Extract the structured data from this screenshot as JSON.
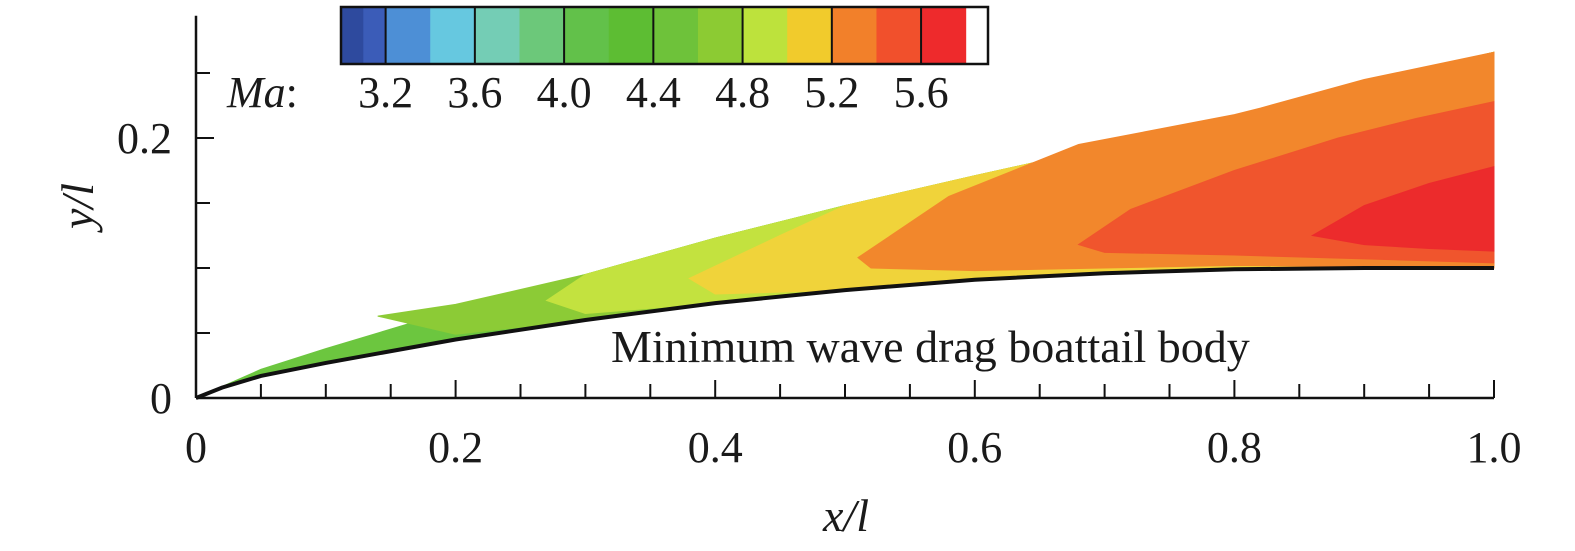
{
  "chart_data": {
    "type": "heatmap",
    "xlabel": "x/l",
    "ylabel": "y/l",
    "xlim": [
      0,
      1.0
    ],
    "ylim": [
      0,
      0.3
    ],
    "x_ticks": [
      "0",
      "0.2",
      "0.4",
      "0.6",
      "0.8",
      "1.0"
    ],
    "x_tick_values": [
      0,
      0.2,
      0.4,
      0.6,
      0.8,
      1.0
    ],
    "y_ticks": [
      "0",
      "0.2"
    ],
    "y_tick_values": [
      0,
      0.2
    ],
    "annotation": "Minimum wave drag boattail body",
    "colorbar": {
      "title_var": "Ma",
      "title_sep": ":",
      "labels": [
        "3.2",
        "3.6",
        "4.0",
        "4.4",
        "4.8",
        "5.2",
        "5.6"
      ],
      "label_values": [
        3.2,
        3.6,
        4.0,
        4.4,
        4.8,
        5.2,
        5.6
      ],
      "levels": [
        3.0,
        3.1,
        3.2,
        3.4,
        3.6,
        3.8,
        4.0,
        4.2,
        4.4,
        4.6,
        4.8,
        5.0,
        5.2,
        5.4,
        5.6,
        5.8,
        5.9
      ],
      "colors": [
        "#2e4a9e",
        "#3b5cb8",
        "#4d8fd6",
        "#66c8e0",
        "#74cdb5",
        "#6cc87a",
        "#62c14a",
        "#5dbd33",
        "#6ec23a",
        "#8ccb33",
        "#bde23c",
        "#f1cb2c",
        "#f2802a",
        "#f1502c",
        "#ee2a2c"
      ]
    },
    "body_curve": {
      "x": [
        0,
        0.02,
        0.05,
        0.1,
        0.2,
        0.3,
        0.4,
        0.5,
        0.6,
        0.7,
        0.8,
        0.9,
        1.0
      ],
      "y": [
        0,
        0.008,
        0.017,
        0.027,
        0.045,
        0.06,
        0.073,
        0.083,
        0.091,
        0.096,
        0.099,
        0.1,
        0.1
      ]
    },
    "shock_curve": {
      "x": [
        0,
        0.05,
        0.1,
        0.2,
        0.3,
        0.4,
        0.5,
        0.6,
        0.7,
        0.8,
        0.9,
        1.0
      ],
      "y": [
        0,
        0.022,
        0.038,
        0.068,
        0.095,
        0.123,
        0.148,
        0.171,
        0.193,
        0.217,
        0.242,
        0.266
      ]
    },
    "regions": [
      {
        "name": "Ma 4.4-4.8",
        "color": "#6cc63f",
        "x": [
          0,
          0.05,
          0.1,
          0.2,
          0.3,
          0.4,
          0.5,
          0.6,
          0.7,
          0.8,
          0.9,
          1.0,
          1.0,
          0.9,
          0.8,
          0.7,
          0.6,
          0.5,
          0.4,
          0.3,
          0.2,
          0.1,
          0.05,
          0.02,
          0
        ],
        "y": [
          0,
          0.022,
          0.038,
          0.068,
          0.095,
          0.123,
          0.148,
          0.171,
          0.193,
          0.217,
          0.242,
          0.266,
          0.1,
          0.1,
          0.099,
          0.096,
          0.091,
          0.083,
          0.073,
          0.06,
          0.045,
          0.027,
          0.017,
          0.008,
          0
        ]
      },
      {
        "name": "Ma 4.8-5.0",
        "color": "#8ccb36",
        "x": [
          0.14,
          0.2,
          0.3,
          0.4,
          0.5,
          0.6,
          0.7,
          0.8,
          0.9,
          1.0,
          1.0,
          0.9,
          0.8,
          0.7,
          0.6,
          0.5,
          0.4,
          0.3,
          0.2,
          0.14
        ],
        "y": [
          0.063,
          0.072,
          0.095,
          0.123,
          0.148,
          0.171,
          0.193,
          0.217,
          0.242,
          0.266,
          0.1,
          0.1,
          0.099,
          0.096,
          0.091,
          0.083,
          0.073,
          0.06,
          0.049,
          0.063
        ]
      },
      {
        "name": "Ma 5.0-5.2",
        "color": "#c3e23f",
        "x": [
          0.27,
          0.3,
          0.4,
          0.5,
          0.6,
          0.7,
          0.8,
          0.9,
          1.0,
          1.0,
          0.9,
          0.8,
          0.7,
          0.6,
          0.5,
          0.4,
          0.3,
          0.27
        ],
        "y": [
          0.075,
          0.095,
          0.123,
          0.148,
          0.171,
          0.193,
          0.217,
          0.242,
          0.266,
          0.1,
          0.1,
          0.099,
          0.096,
          0.091,
          0.083,
          0.073,
          0.065,
          0.075
        ]
      },
      {
        "name": "Ma 5.2-5.4",
        "color": "#f0d33a",
        "x": [
          0.38,
          0.45,
          0.5,
          0.6,
          0.7,
          0.8,
          0.9,
          1.0,
          1.0,
          0.9,
          0.8,
          0.7,
          0.6,
          0.5,
          0.4,
          0.38
        ],
        "y": [
          0.092,
          0.125,
          0.148,
          0.171,
          0.193,
          0.217,
          0.242,
          0.266,
          0.1,
          0.1,
          0.099,
          0.096,
          0.091,
          0.083,
          0.08,
          0.092
        ]
      },
      {
        "name": "Ma 5.4-5.6",
        "color": "#f2872c",
        "x": [
          0.51,
          0.58,
          0.68,
          0.8,
          0.82,
          0.9,
          1.0,
          1.0,
          0.9,
          0.8,
          0.7,
          0.6,
          0.52,
          0.51
        ],
        "y": [
          0.108,
          0.155,
          0.195,
          0.218,
          0.223,
          0.245,
          0.266,
          0.1,
          0.101,
          0.102,
          0.1,
          0.098,
          0.1,
          0.108
        ]
      },
      {
        "name": "Ma 5.6-5.8",
        "color": "#f0552d",
        "x": [
          0.68,
          0.72,
          0.8,
          0.88,
          0.94,
          1.0,
          1.0,
          0.9,
          0.8,
          0.7,
          0.68
        ],
        "y": [
          0.118,
          0.145,
          0.175,
          0.2,
          0.215,
          0.228,
          0.104,
          0.107,
          0.11,
          0.112,
          0.118
        ]
      },
      {
        "name": "Ma 5.8-5.9",
        "color": "#ec2b2c",
        "x": [
          0.86,
          0.9,
          0.95,
          1.0,
          1.0,
          0.95,
          0.9,
          0.86
        ],
        "y": [
          0.125,
          0.148,
          0.165,
          0.178,
          0.113,
          0.115,
          0.118,
          0.125
        ]
      }
    ]
  }
}
